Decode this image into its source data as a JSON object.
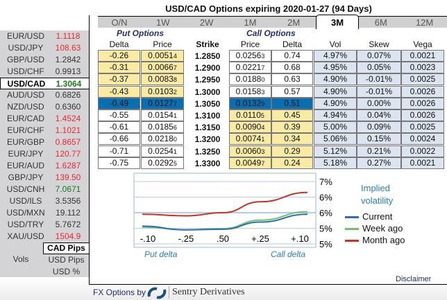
{
  "title": "USD/CAD Options expiring 2020-01-27 (94 Days)",
  "tabs": [
    "O/N",
    "1W",
    "2W",
    "1M",
    "2M",
    "3M",
    "6M",
    "12M"
  ],
  "active_tab": "3M",
  "sidebar": {
    "pairs": [
      {
        "name": "EUR/USD",
        "value": "1.1118",
        "color": "#f0262f"
      },
      {
        "name": "USD/JPY",
        "value": "108.63",
        "color": "#f0262f"
      },
      {
        "name": "GBP/USD",
        "value": "1.2842",
        "color": "#333333"
      },
      {
        "name": "USD/CHF",
        "value": "0.9913",
        "color": "#333333"
      },
      {
        "name": "USD/CAD",
        "value": "1.3064",
        "color": "#1a7a1a",
        "selected": true
      },
      {
        "name": "AUD/USD",
        "value": "0.6826",
        "color": "#333333"
      },
      {
        "name": "NZD/USD",
        "value": "0.6360",
        "color": "#333333"
      },
      {
        "name": "EUR/CAD",
        "value": "1.4524",
        "color": "#f0262f"
      },
      {
        "name": "EUR/CHF",
        "value": "1.1021",
        "color": "#f0262f"
      },
      {
        "name": "EUR/GBP",
        "value": "0.8657",
        "color": "#f0262f"
      },
      {
        "name": "EUR/JPY",
        "value": "120.77",
        "color": "#f0262f"
      },
      {
        "name": "EUR/AUD",
        "value": "1.6287",
        "color": "#f0262f"
      },
      {
        "name": "GBP/JPY",
        "value": "139.50",
        "color": "#f0262f"
      },
      {
        "name": "USD/CNH",
        "value": "7.0671",
        "color": "#1a7a1a"
      },
      {
        "name": "USD/ILS",
        "value": "3.5356",
        "color": "#333333"
      },
      {
        "name": "USD/MXN",
        "value": "19.112",
        "color": "#333333"
      },
      {
        "name": "USD/TRY",
        "value": "5.7672",
        "color": "#333333"
      },
      {
        "name": "XAU/USD",
        "value": "1504.9",
        "color": "#f0262f"
      }
    ],
    "units_label": "Vols",
    "units": [
      "CAD Pips",
      "USD Pips",
      "USD %"
    ],
    "selected_unit": "CAD Pips"
  },
  "table": {
    "put_title": "Put Options",
    "call_title": "Call Options",
    "headers": [
      "Delta",
      "Price",
      "Strike",
      "Price",
      "Delta",
      "Vol",
      "Skew",
      "Vega"
    ],
    "rows": [
      [
        "-0.26",
        "0.00514",
        "1.2850",
        "0.02563",
        "0.74",
        "4.97%",
        "0.07%",
        "0.0021"
      ],
      [
        "-0.31",
        "0.00667",
        "1.2900",
        "0.02217",
        "0.68",
        "4.95%",
        "0.05%",
        "0.0023"
      ],
      [
        "-0.37",
        "0.00838",
        "1.2950",
        "0.01880",
        "0.63",
        "4.90%",
        "-0.01%",
        "0.0025"
      ],
      [
        "-0.43",
        "0.01032",
        "1.3000",
        "0.01583",
        "0.57",
        "4.90%",
        "-0.01%",
        "0.0026"
      ],
      [
        "-0.49",
        "0.01277",
        "1.3050",
        "0.01329",
        "0.51",
        "4.90%",
        "0.00%",
        "0.0026"
      ],
      [
        "-0.55",
        "0.01541",
        "1.3100",
        "0.01105",
        "0.45",
        "4.94%",
        "0.04%",
        "0.0026"
      ],
      [
        "-0.61",
        "0.01856",
        "1.3150",
        "0.00904",
        "0.39",
        "5.00%",
        "0.09%",
        "0.0025"
      ],
      [
        "-0.66",
        "0.02180",
        "1.3200",
        "0.00741",
        "0.34",
        "5.06%",
        "0.15%",
        "0.0024"
      ],
      [
        "-0.71",
        "0.02541",
        "1.3250",
        "0.00603",
        "0.29",
        "5.12%",
        "0.21%",
        "0.0022"
      ],
      [
        "-0.75",
        "0.02925",
        "1.3300",
        "0.00497",
        "0.24",
        "5.18%",
        "0.27%",
        "0.0021"
      ]
    ],
    "atm_row": 4
  },
  "chart_data": {
    "type": "line",
    "title": "Implied volatility",
    "categories": [
      "-.10",
      "-.25",
      ".50",
      "+.25",
      "+.10"
    ],
    "y_ticks": [
      "7%",
      "6%",
      "6%",
      "5%",
      "5%"
    ],
    "ylim": [
      5.0,
      7.0
    ],
    "xlabel_left": "Put delta",
    "xlabel_right": "Call delta",
    "legend": "right",
    "grid": true,
    "series": [
      {
        "name": "Current",
        "color": "#2f6db5",
        "values": [
          5.57,
          5.45,
          5.47,
          5.7,
          5.95
        ]
      },
      {
        "name": "Week ago",
        "color": "#6cc46a",
        "values": [
          5.54,
          5.45,
          5.49,
          5.76,
          6.03
        ]
      },
      {
        "name": "Month ago",
        "color": "#d03020",
        "values": [
          5.95,
          5.9,
          6.0,
          6.35,
          6.65
        ]
      }
    ]
  },
  "disclaimer": "Disclaimer",
  "footer": {
    "prefix": "FX Options by",
    "brand": "Sentry Derivatives"
  }
}
